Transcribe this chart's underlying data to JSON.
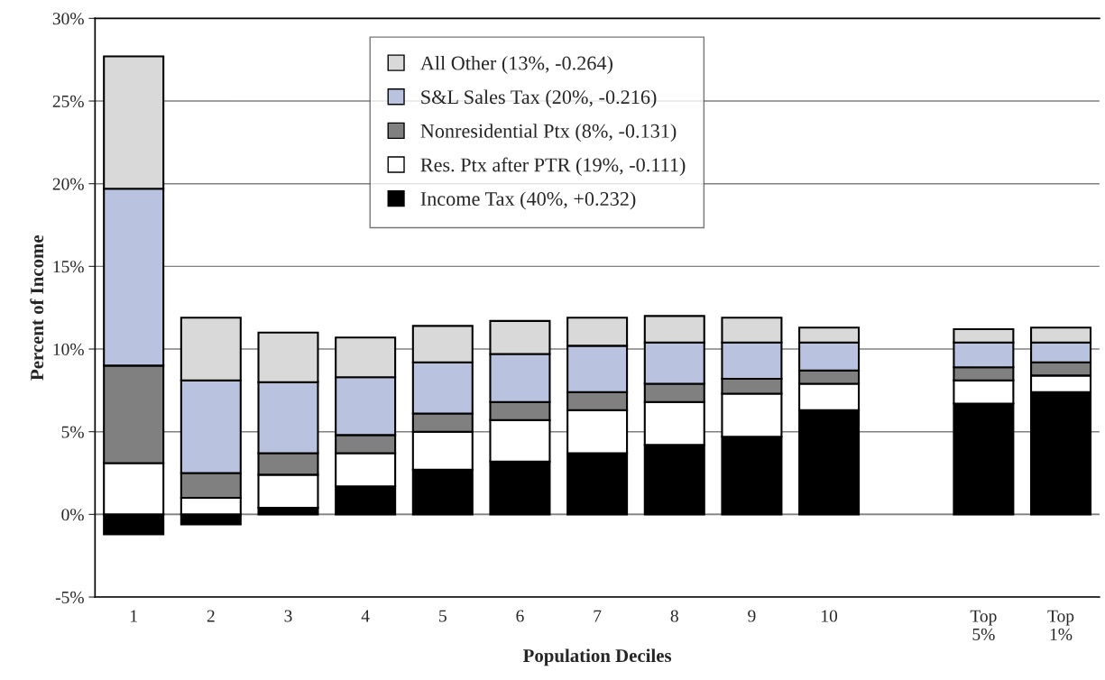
{
  "chart_data": {
    "type": "bar",
    "stacked": true,
    "xlabel": "Population Deciles",
    "ylabel": "Percent of Income",
    "categories": [
      "1",
      "2",
      "3",
      "4",
      "5",
      "6",
      "7",
      "8",
      "9",
      "10",
      null,
      "Top\n5%",
      "Top\n1%"
    ],
    "series": [
      {
        "name": "Income Tax (40%, +0.232)",
        "color": "#000000",
        "values": [
          -1.2,
          -0.6,
          0.4,
          1.7,
          2.7,
          3.2,
          3.7,
          4.2,
          4.7,
          6.3,
          null,
          6.7,
          7.4
        ]
      },
      {
        "name": "Res. Ptx after PTR (19%, -0.111)",
        "color": "#ffffff",
        "values": [
          3.1,
          1.0,
          2.0,
          2.0,
          2.3,
          2.5,
          2.6,
          2.6,
          2.6,
          1.6,
          null,
          1.4,
          1.0
        ]
      },
      {
        "name": "Nonresidential Ptx (8%, -0.131)",
        "color": "#808080",
        "values": [
          5.9,
          1.5,
          1.3,
          1.1,
          1.1,
          1.1,
          1.1,
          1.1,
          0.9,
          0.8,
          null,
          0.8,
          0.8
        ]
      },
      {
        "name": "S&L Sales Tax (20%, -0.216)",
        "color": "#b9c3e0",
        "values": [
          10.7,
          5.6,
          4.3,
          3.5,
          3.1,
          2.9,
          2.8,
          2.5,
          2.2,
          1.7,
          null,
          1.5,
          1.2
        ]
      },
      {
        "name": "All Other (13%, -0.264)",
        "color": "#d9d9d9",
        "values": [
          8.0,
          3.8,
          3.0,
          2.4,
          2.2,
          2.0,
          1.7,
          1.6,
          1.5,
          0.9,
          null,
          0.8,
          0.9
        ]
      }
    ],
    "ylim": [
      -5,
      30
    ],
    "yticks": [
      {
        "value": -5,
        "label": "-5%"
      },
      {
        "value": 0,
        "label": "0%"
      },
      {
        "value": 5,
        "label": "5%"
      },
      {
        "value": 10,
        "label": "10%"
      },
      {
        "value": 15,
        "label": "15%"
      },
      {
        "value": 20,
        "label": "20%"
      },
      {
        "value": 25,
        "label": "25%"
      },
      {
        "value": 30,
        "label": "30%"
      }
    ],
    "grid": "y",
    "legend": "top"
  }
}
